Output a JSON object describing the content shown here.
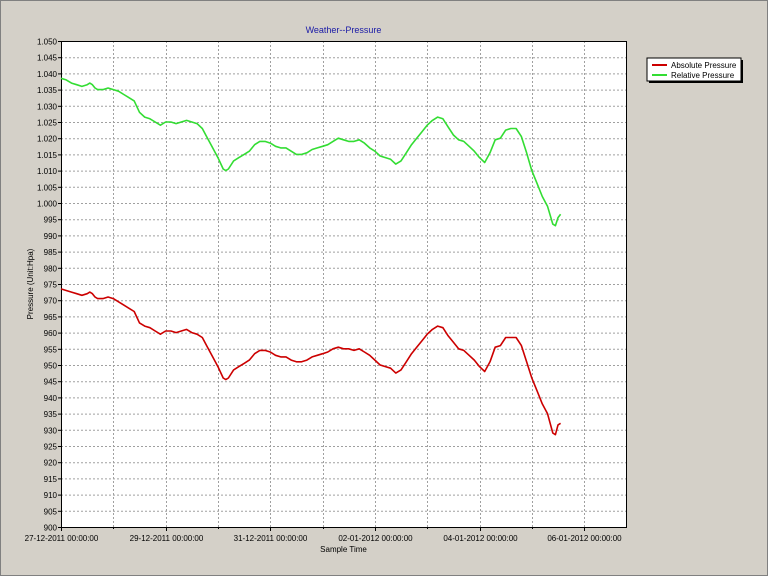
{
  "chart_data": {
    "type": "line",
    "title": "Weather--Pressure",
    "xlabel": "Sample Time",
    "ylabel": "Pressure (Unit:Hpa)",
    "ylim": [
      900,
      1050
    ],
    "ytick_step": 5,
    "yticks": [
      "900",
      "905",
      "910",
      "915",
      "920",
      "925",
      "930",
      "935",
      "940",
      "945",
      "950",
      "955",
      "960",
      "965",
      "970",
      "975",
      "980",
      "985",
      "990",
      "995",
      "1.000",
      "1.005",
      "1.010",
      "1.015",
      "1.020",
      "1.025",
      "1.030",
      "1.035",
      "1.040",
      "1.045",
      "1.050"
    ],
    "xlim": [
      0,
      10.8
    ],
    "xticks": [
      {
        "x": 0,
        "label": "27-12-2011 00:00:00"
      },
      {
        "x": 2,
        "label": "29-12-2011 00:00:00"
      },
      {
        "x": 4,
        "label": "31-12-2011 00:00:00"
      },
      {
        "x": 6,
        "label": "02-01-2012 00:00:00"
      },
      {
        "x": 8,
        "label": "04-01-2012 00:00:00"
      },
      {
        "x": 10,
        "label": "06-01-2012 00:00:00"
      }
    ],
    "x_minor_step": 1,
    "grid": true,
    "legend_position": "top-right",
    "series": [
      {
        "name": "Absolute Pressure",
        "color": "#cc0000",
        "points": [
          [
            0.0,
            973.5
          ],
          [
            0.1,
            973.0
          ],
          [
            0.2,
            972.5
          ],
          [
            0.3,
            972.0
          ],
          [
            0.4,
            971.5
          ],
          [
            0.5,
            972.0
          ],
          [
            0.55,
            972.5
          ],
          [
            0.6,
            972.0
          ],
          [
            0.65,
            971.0
          ],
          [
            0.7,
            970.5
          ],
          [
            0.8,
            970.5
          ],
          [
            0.9,
            971.0
          ],
          [
            1.0,
            970.5
          ],
          [
            1.1,
            969.5
          ],
          [
            1.2,
            968.5
          ],
          [
            1.3,
            967.5
          ],
          [
            1.4,
            966.5
          ],
          [
            1.5,
            963.0
          ],
          [
            1.6,
            962.0
          ],
          [
            1.7,
            961.5
          ],
          [
            1.8,
            960.5
          ],
          [
            1.9,
            959.5
          ],
          [
            2.0,
            960.5
          ],
          [
            2.1,
            960.5
          ],
          [
            2.2,
            960.0
          ],
          [
            2.3,
            960.5
          ],
          [
            2.4,
            961.0
          ],
          [
            2.5,
            960.0
          ],
          [
            2.6,
            959.5
          ],
          [
            2.7,
            958.5
          ],
          [
            2.8,
            955.5
          ],
          [
            2.9,
            952.5
          ],
          [
            3.0,
            949.5
          ],
          [
            3.1,
            946.0
          ],
          [
            3.15,
            945.5
          ],
          [
            3.2,
            946.0
          ],
          [
            3.3,
            948.5
          ],
          [
            3.4,
            949.5
          ],
          [
            3.5,
            950.5
          ],
          [
            3.6,
            951.5
          ],
          [
            3.7,
            953.5
          ],
          [
            3.8,
            954.5
          ],
          [
            3.9,
            954.5
          ],
          [
            4.0,
            954.0
          ],
          [
            4.1,
            953.0
          ],
          [
            4.2,
            952.5
          ],
          [
            4.3,
            952.5
          ],
          [
            4.4,
            951.5
          ],
          [
            4.5,
            951.0
          ],
          [
            4.6,
            951.0
          ],
          [
            4.7,
            951.5
          ],
          [
            4.8,
            952.5
          ],
          [
            4.9,
            953.0
          ],
          [
            5.0,
            953.5
          ],
          [
            5.1,
            954.0
          ],
          [
            5.2,
            955.0
          ],
          [
            5.3,
            955.5
          ],
          [
            5.4,
            955.0
          ],
          [
            5.5,
            955.0
          ],
          [
            5.6,
            954.5
          ],
          [
            5.7,
            955.0
          ],
          [
            5.8,
            954.0
          ],
          [
            5.9,
            953.0
          ],
          [
            6.0,
            951.5
          ],
          [
            6.1,
            950.0
          ],
          [
            6.2,
            949.5
          ],
          [
            6.3,
            949.0
          ],
          [
            6.4,
            947.5
          ],
          [
            6.5,
            948.5
          ],
          [
            6.6,
            951.0
          ],
          [
            6.7,
            953.5
          ],
          [
            6.8,
            955.5
          ],
          [
            6.9,
            957.5
          ],
          [
            7.0,
            959.5
          ],
          [
            7.1,
            961.0
          ],
          [
            7.2,
            962.0
          ],
          [
            7.3,
            961.5
          ],
          [
            7.4,
            959.0
          ],
          [
            7.5,
            957.0
          ],
          [
            7.6,
            955.0
          ],
          [
            7.7,
            954.5
          ],
          [
            7.8,
            953.0
          ],
          [
            7.9,
            951.5
          ],
          [
            8.0,
            949.5
          ],
          [
            8.1,
            948.0
          ],
          [
            8.2,
            951.0
          ],
          [
            8.3,
            955.5
          ],
          [
            8.4,
            956.0
          ],
          [
            8.5,
            958.5
          ],
          [
            8.6,
            958.5
          ],
          [
            8.7,
            958.5
          ],
          [
            8.8,
            956.0
          ],
          [
            8.9,
            951.0
          ],
          [
            9.0,
            946.0
          ],
          [
            9.1,
            942.0
          ],
          [
            9.2,
            938.0
          ],
          [
            9.3,
            935.0
          ],
          [
            9.4,
            929.0
          ],
          [
            9.45,
            928.5
          ],
          [
            9.5,
            931.5
          ],
          [
            9.55,
            932.0
          ]
        ]
      },
      {
        "name": "Relative Pressure",
        "color": "#33dd33",
        "points": [
          [
            0.0,
            1038.5
          ],
          [
            0.1,
            1038.0
          ],
          [
            0.2,
            1037.0
          ],
          [
            0.3,
            1036.5
          ],
          [
            0.4,
            1036.0
          ],
          [
            0.5,
            1036.5
          ],
          [
            0.55,
            1037.0
          ],
          [
            0.6,
            1036.5
          ],
          [
            0.65,
            1035.5
          ],
          [
            0.7,
            1035.0
          ],
          [
            0.8,
            1035.0
          ],
          [
            0.9,
            1035.5
          ],
          [
            1.0,
            1035.0
          ],
          [
            1.1,
            1034.5
          ],
          [
            1.2,
            1033.5
          ],
          [
            1.3,
            1032.5
          ],
          [
            1.4,
            1031.5
          ],
          [
            1.5,
            1028.0
          ],
          [
            1.6,
            1026.5
          ],
          [
            1.7,
            1026.0
          ],
          [
            1.8,
            1025.0
          ],
          [
            1.9,
            1024.0
          ],
          [
            2.0,
            1025.0
          ],
          [
            2.1,
            1025.0
          ],
          [
            2.2,
            1024.5
          ],
          [
            2.3,
            1025.0
          ],
          [
            2.4,
            1025.5
          ],
          [
            2.5,
            1025.0
          ],
          [
            2.6,
            1024.5
          ],
          [
            2.7,
            1023.0
          ],
          [
            2.8,
            1020.0
          ],
          [
            2.9,
            1017.0
          ],
          [
            3.0,
            1014.0
          ],
          [
            3.1,
            1010.5
          ],
          [
            3.15,
            1010.0
          ],
          [
            3.2,
            1010.5
          ],
          [
            3.3,
            1013.0
          ],
          [
            3.4,
            1014.0
          ],
          [
            3.5,
            1015.0
          ],
          [
            3.6,
            1016.0
          ],
          [
            3.7,
            1018.0
          ],
          [
            3.8,
            1019.0
          ],
          [
            3.9,
            1019.0
          ],
          [
            4.0,
            1018.5
          ],
          [
            4.1,
            1017.5
          ],
          [
            4.2,
            1017.0
          ],
          [
            4.3,
            1017.0
          ],
          [
            4.4,
            1016.0
          ],
          [
            4.5,
            1015.0
          ],
          [
            4.6,
            1015.0
          ],
          [
            4.7,
            1015.5
          ],
          [
            4.8,
            1016.5
          ],
          [
            4.9,
            1017.0
          ],
          [
            5.0,
            1017.5
          ],
          [
            5.1,
            1018.0
          ],
          [
            5.2,
            1019.0
          ],
          [
            5.3,
            1020.0
          ],
          [
            5.4,
            1019.5
          ],
          [
            5.5,
            1019.0
          ],
          [
            5.6,
            1019.0
          ],
          [
            5.7,
            1019.5
          ],
          [
            5.8,
            1018.5
          ],
          [
            5.9,
            1017.0
          ],
          [
            6.0,
            1016.0
          ],
          [
            6.1,
            1014.5
          ],
          [
            6.2,
            1014.0
          ],
          [
            6.3,
            1013.5
          ],
          [
            6.4,
            1012.0
          ],
          [
            6.5,
            1013.0
          ],
          [
            6.6,
            1015.5
          ],
          [
            6.7,
            1018.0
          ],
          [
            6.8,
            1020.0
          ],
          [
            6.9,
            1022.0
          ],
          [
            7.0,
            1024.0
          ],
          [
            7.1,
            1025.5
          ],
          [
            7.2,
            1026.5
          ],
          [
            7.3,
            1026.0
          ],
          [
            7.4,
            1023.5
          ],
          [
            7.5,
            1021.0
          ],
          [
            7.6,
            1019.5
          ],
          [
            7.7,
            1019.0
          ],
          [
            7.8,
            1017.5
          ],
          [
            7.9,
            1016.0
          ],
          [
            8.0,
            1014.0
          ],
          [
            8.1,
            1012.5
          ],
          [
            8.2,
            1015.5
          ],
          [
            8.3,
            1019.5
          ],
          [
            8.4,
            1020.0
          ],
          [
            8.5,
            1022.5
          ],
          [
            8.6,
            1023.0
          ],
          [
            8.7,
            1023.0
          ],
          [
            8.8,
            1020.5
          ],
          [
            8.9,
            1015.5
          ],
          [
            9.0,
            1010.0
          ],
          [
            9.1,
            1006.0
          ],
          [
            9.2,
            1002.0
          ],
          [
            9.3,
            999.0
          ],
          [
            9.4,
            993.5
          ],
          [
            9.45,
            993.0
          ],
          [
            9.5,
            995.5
          ],
          [
            9.55,
            996.5
          ]
        ]
      }
    ]
  }
}
